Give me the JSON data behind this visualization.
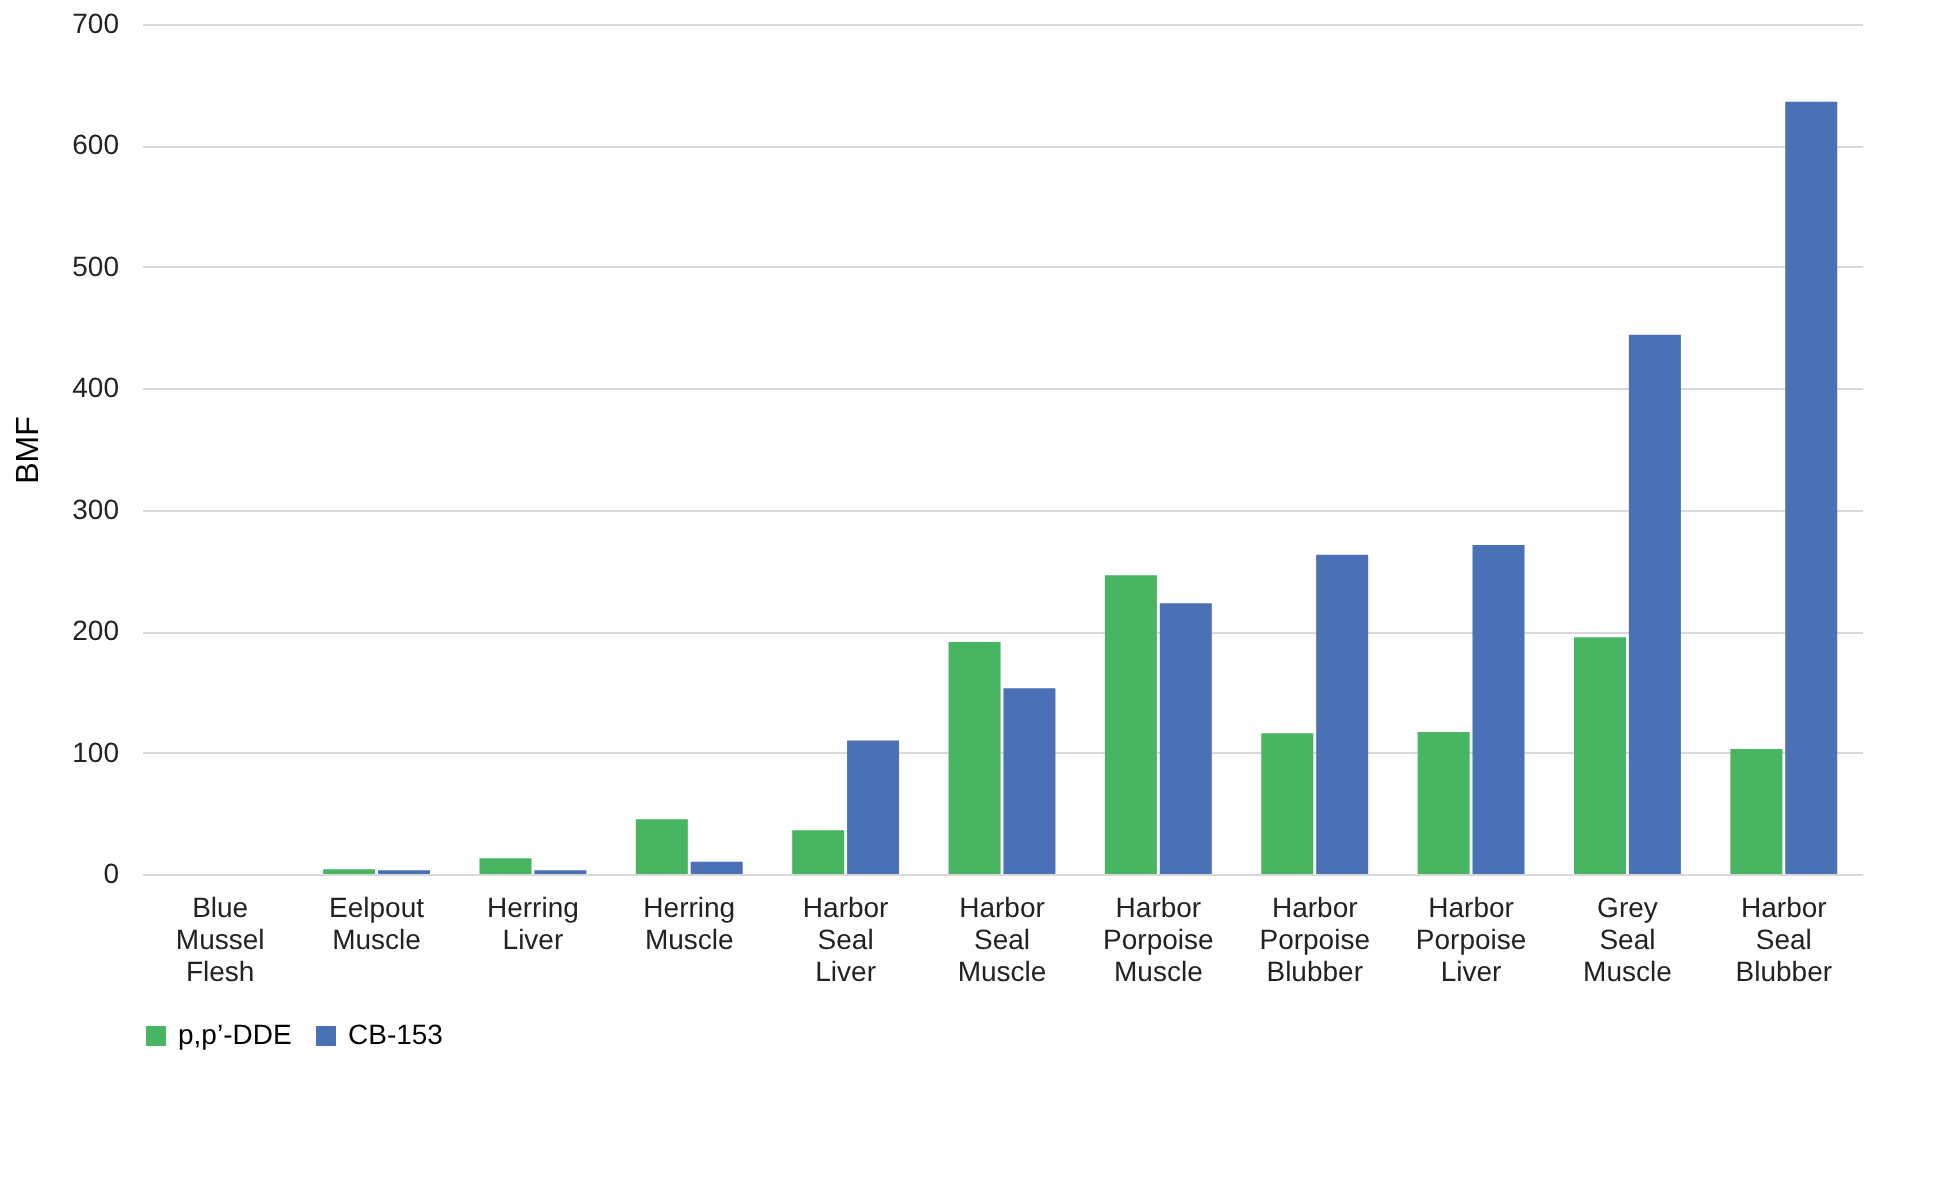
{
  "chart_data": {
    "type": "bar",
    "ylabel": "BMF",
    "categories": [
      "Blue Mussel Flesh",
      "Eelpout Muscle",
      "Herring Liver",
      "Herring Muscle",
      "Harbor Seal Liver",
      "Harbor Seal Muscle",
      "Harbor Porpoise Muscle",
      "Harbor Porpoise Blubber",
      "Harbor Porpoise Liver",
      "Grey Seal Muscle",
      "Harbor Seal Blubber"
    ],
    "series": [
      {
        "name": "p,p’-DDE",
        "color": "#47b562",
        "values": [
          0,
          4,
          13,
          45,
          36,
          191,
          246,
          116,
          117,
          195,
          103
        ]
      },
      {
        "name": "CB-153",
        "color": "#4a70b6",
        "values": [
          0,
          3,
          3,
          10,
          110,
          153,
          223,
          263,
          271,
          444,
          636
        ]
      }
    ],
    "ylim": [
      0,
      700
    ],
    "yticks": [
      0,
      100,
      200,
      300,
      400,
      500,
      600,
      700
    ],
    "grid": "y",
    "legend": "bottom"
  }
}
